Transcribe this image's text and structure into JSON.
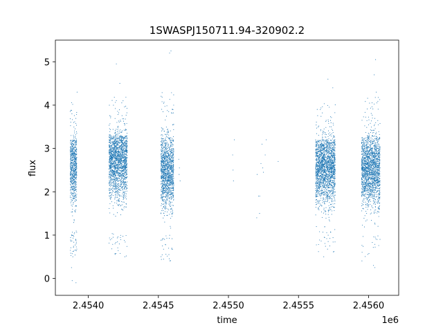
{
  "chart_data": {
    "type": "scatter",
    "title": "1SWASPJ150711.94-320902.2",
    "xlabel": "time",
    "ylabel": "flux",
    "x_offset_label": "1e6",
    "xlim": [
      2453765,
      2456215
    ],
    "ylim": [
      -0.39,
      5.5
    ],
    "x_ticks": [
      {
        "value": 2454000,
        "label": "2.4540"
      },
      {
        "value": 2454500,
        "label": "2.4545"
      },
      {
        "value": 2455000,
        "label": "2.4550"
      },
      {
        "value": 2455500,
        "label": "2.4555"
      },
      {
        "value": 2456000,
        "label": "2.4560"
      }
    ],
    "y_ticks": [
      {
        "value": 0,
        "label": "0"
      },
      {
        "value": 1,
        "label": "1"
      },
      {
        "value": 2,
        "label": "2"
      },
      {
        "value": 3,
        "label": "3"
      },
      {
        "value": 4,
        "label": "4"
      },
      {
        "value": 5,
        "label": "5"
      }
    ],
    "grid": false,
    "marker_color": "#1f77b4",
    "observing_seasons": [
      {
        "start": 2453871,
        "end": 2453918,
        "median_flux": 2.55,
        "low": 1.1,
        "high": 3.2
      },
      {
        "start": 2454148,
        "end": 2454278,
        "median_flux": 2.7,
        "low": 1.1,
        "high": 3.3
      },
      {
        "start": 2454518,
        "end": 2454610,
        "median_flux": 2.45,
        "low": 1.0,
        "high": 3.4
      },
      {
        "start": 2455622,
        "end": 2455762,
        "median_flux": 2.55,
        "low": 1.2,
        "high": 3.2
      },
      {
        "start": 2455950,
        "end": 2456082,
        "median_flux": 2.5,
        "low": 1.0,
        "high": 3.3
      }
    ],
    "sparse_points": [
      {
        "x": 2454645,
        "y": 2.75
      },
      {
        "x": 2454650,
        "y": 2.55
      },
      {
        "x": 2454655,
        "y": 2.25
      },
      {
        "x": 2454648,
        "y": 2.4
      },
      {
        "x": 2455030,
        "y": 2.85
      },
      {
        "x": 2455033,
        "y": 2.5
      },
      {
        "x": 2455036,
        "y": 2.25
      },
      {
        "x": 2455042,
        "y": 3.2
      },
      {
        "x": 2455205,
        "y": 2.4
      },
      {
        "x": 2455215,
        "y": 1.9
      },
      {
        "x": 2455223,
        "y": 1.9
      },
      {
        "x": 2455232,
        "y": 2.65
      },
      {
        "x": 2455240,
        "y": 3.1
      },
      {
        "x": 2455250,
        "y": 2.45
      },
      {
        "x": 2455262,
        "y": 2.85
      },
      {
        "x": 2455270,
        "y": 3.2
      },
      {
        "x": 2455202,
        "y": 1.4
      },
      {
        "x": 2455222,
        "y": 1.5
      },
      {
        "x": 2455355,
        "y": 2.7
      },
      {
        "x": 2455245,
        "y": 2.55
      }
    ],
    "outliers": [
      {
        "x": 2453880,
        "y": 0.25
      },
      {
        "x": 2453885,
        "y": -0.05
      },
      {
        "x": 2453912,
        "y": -0.1
      },
      {
        "x": 2453920,
        "y": 4.3
      },
      {
        "x": 2454200,
        "y": 4.95
      },
      {
        "x": 2454225,
        "y": 4.5
      },
      {
        "x": 2454248,
        "y": 4.1
      },
      {
        "x": 2454580,
        "y": 5.2
      },
      {
        "x": 2454590,
        "y": 5.25
      },
      {
        "x": 2454575,
        "y": 0.55
      },
      {
        "x": 2455710,
        "y": 4.6
      },
      {
        "x": 2455745,
        "y": 4.4
      },
      {
        "x": 2455680,
        "y": 0.5
      },
      {
        "x": 2456050,
        "y": 5.05
      },
      {
        "x": 2456040,
        "y": 4.7
      },
      {
        "x": 2456055,
        "y": 4.3
      },
      {
        "x": 2456035,
        "y": 0.3
      },
      {
        "x": 2456045,
        "y": 0.25
      }
    ]
  }
}
